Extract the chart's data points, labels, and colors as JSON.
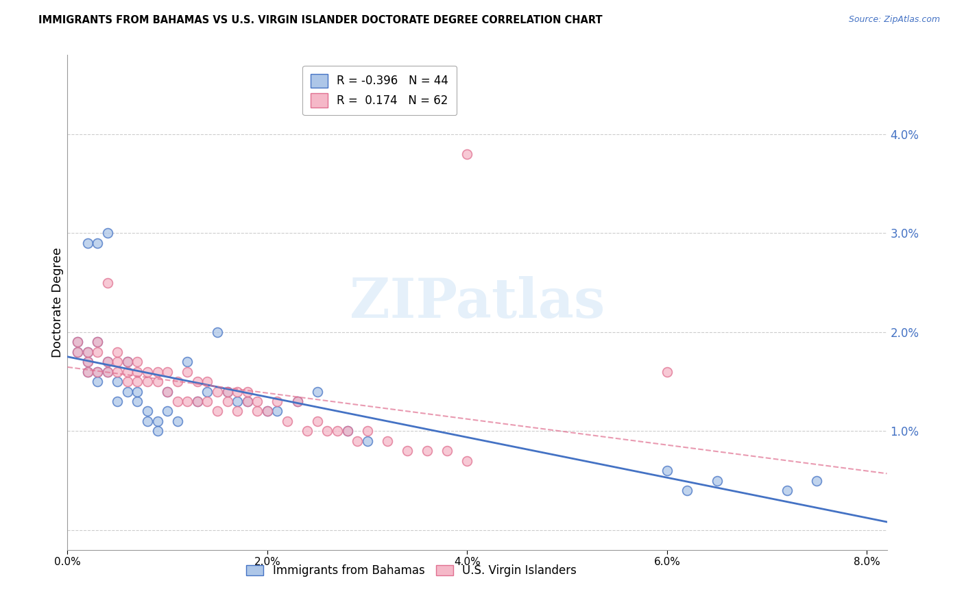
{
  "title": "IMMIGRANTS FROM BAHAMAS VS U.S. VIRGIN ISLANDER DOCTORATE DEGREE CORRELATION CHART",
  "source": "Source: ZipAtlas.com",
  "ylabel": "Doctorate Degree",
  "series1_label": "Immigrants from Bahamas",
  "series1_R": -0.396,
  "series1_N": 44,
  "series1_color": "#adc6e8",
  "series1_line_color": "#4472c4",
  "series2_label": "U.S. Virgin Islanders",
  "series2_R": 0.174,
  "series2_N": 62,
  "series2_color": "#f5b8c8",
  "series2_line_color": "#e07090",
  "xlim": [
    0.0,
    0.082
  ],
  "ylim": [
    -0.002,
    0.048
  ],
  "yticks": [
    0.0,
    0.01,
    0.02,
    0.03,
    0.04
  ],
  "xticks": [
    0.0,
    0.02,
    0.04,
    0.06,
    0.08
  ],
  "background_color": "#ffffff",
  "watermark": "ZIPatlas",
  "series1_x": [
    0.001,
    0.001,
    0.002,
    0.002,
    0.002,
    0.003,
    0.003,
    0.003,
    0.004,
    0.004,
    0.005,
    0.005,
    0.006,
    0.006,
    0.007,
    0.007,
    0.008,
    0.008,
    0.009,
    0.009,
    0.01,
    0.01,
    0.011,
    0.012,
    0.013,
    0.014,
    0.015,
    0.016,
    0.017,
    0.018,
    0.02,
    0.021,
    0.023,
    0.025,
    0.028,
    0.03,
    0.06,
    0.062,
    0.065,
    0.072,
    0.075,
    0.002,
    0.003,
    0.004
  ],
  "series1_y": [
    0.018,
    0.019,
    0.017,
    0.018,
    0.016,
    0.016,
    0.015,
    0.019,
    0.017,
    0.016,
    0.015,
    0.013,
    0.014,
    0.017,
    0.013,
    0.014,
    0.011,
    0.012,
    0.011,
    0.01,
    0.012,
    0.014,
    0.011,
    0.017,
    0.013,
    0.014,
    0.02,
    0.014,
    0.013,
    0.013,
    0.012,
    0.012,
    0.013,
    0.014,
    0.01,
    0.009,
    0.006,
    0.004,
    0.005,
    0.004,
    0.005,
    0.029,
    0.029,
    0.03
  ],
  "series2_x": [
    0.001,
    0.001,
    0.002,
    0.002,
    0.002,
    0.003,
    0.003,
    0.003,
    0.004,
    0.004,
    0.004,
    0.005,
    0.005,
    0.005,
    0.006,
    0.006,
    0.006,
    0.007,
    0.007,
    0.007,
    0.008,
    0.008,
    0.009,
    0.009,
    0.01,
    0.01,
    0.011,
    0.011,
    0.012,
    0.012,
    0.013,
    0.013,
    0.014,
    0.014,
    0.015,
    0.015,
    0.016,
    0.016,
    0.017,
    0.017,
    0.018,
    0.018,
    0.019,
    0.019,
    0.02,
    0.021,
    0.022,
    0.023,
    0.024,
    0.025,
    0.026,
    0.027,
    0.028,
    0.029,
    0.03,
    0.032,
    0.034,
    0.036,
    0.038,
    0.04,
    0.06,
    0.04
  ],
  "series2_y": [
    0.018,
    0.019,
    0.017,
    0.016,
    0.018,
    0.016,
    0.018,
    0.019,
    0.016,
    0.017,
    0.025,
    0.016,
    0.017,
    0.018,
    0.015,
    0.016,
    0.017,
    0.015,
    0.016,
    0.017,
    0.015,
    0.016,
    0.015,
    0.016,
    0.014,
    0.016,
    0.013,
    0.015,
    0.013,
    0.016,
    0.013,
    0.015,
    0.013,
    0.015,
    0.012,
    0.014,
    0.013,
    0.014,
    0.012,
    0.014,
    0.013,
    0.014,
    0.012,
    0.013,
    0.012,
    0.013,
    0.011,
    0.013,
    0.01,
    0.011,
    0.01,
    0.01,
    0.01,
    0.009,
    0.01,
    0.009,
    0.008,
    0.008,
    0.008,
    0.007,
    0.016,
    0.038
  ]
}
